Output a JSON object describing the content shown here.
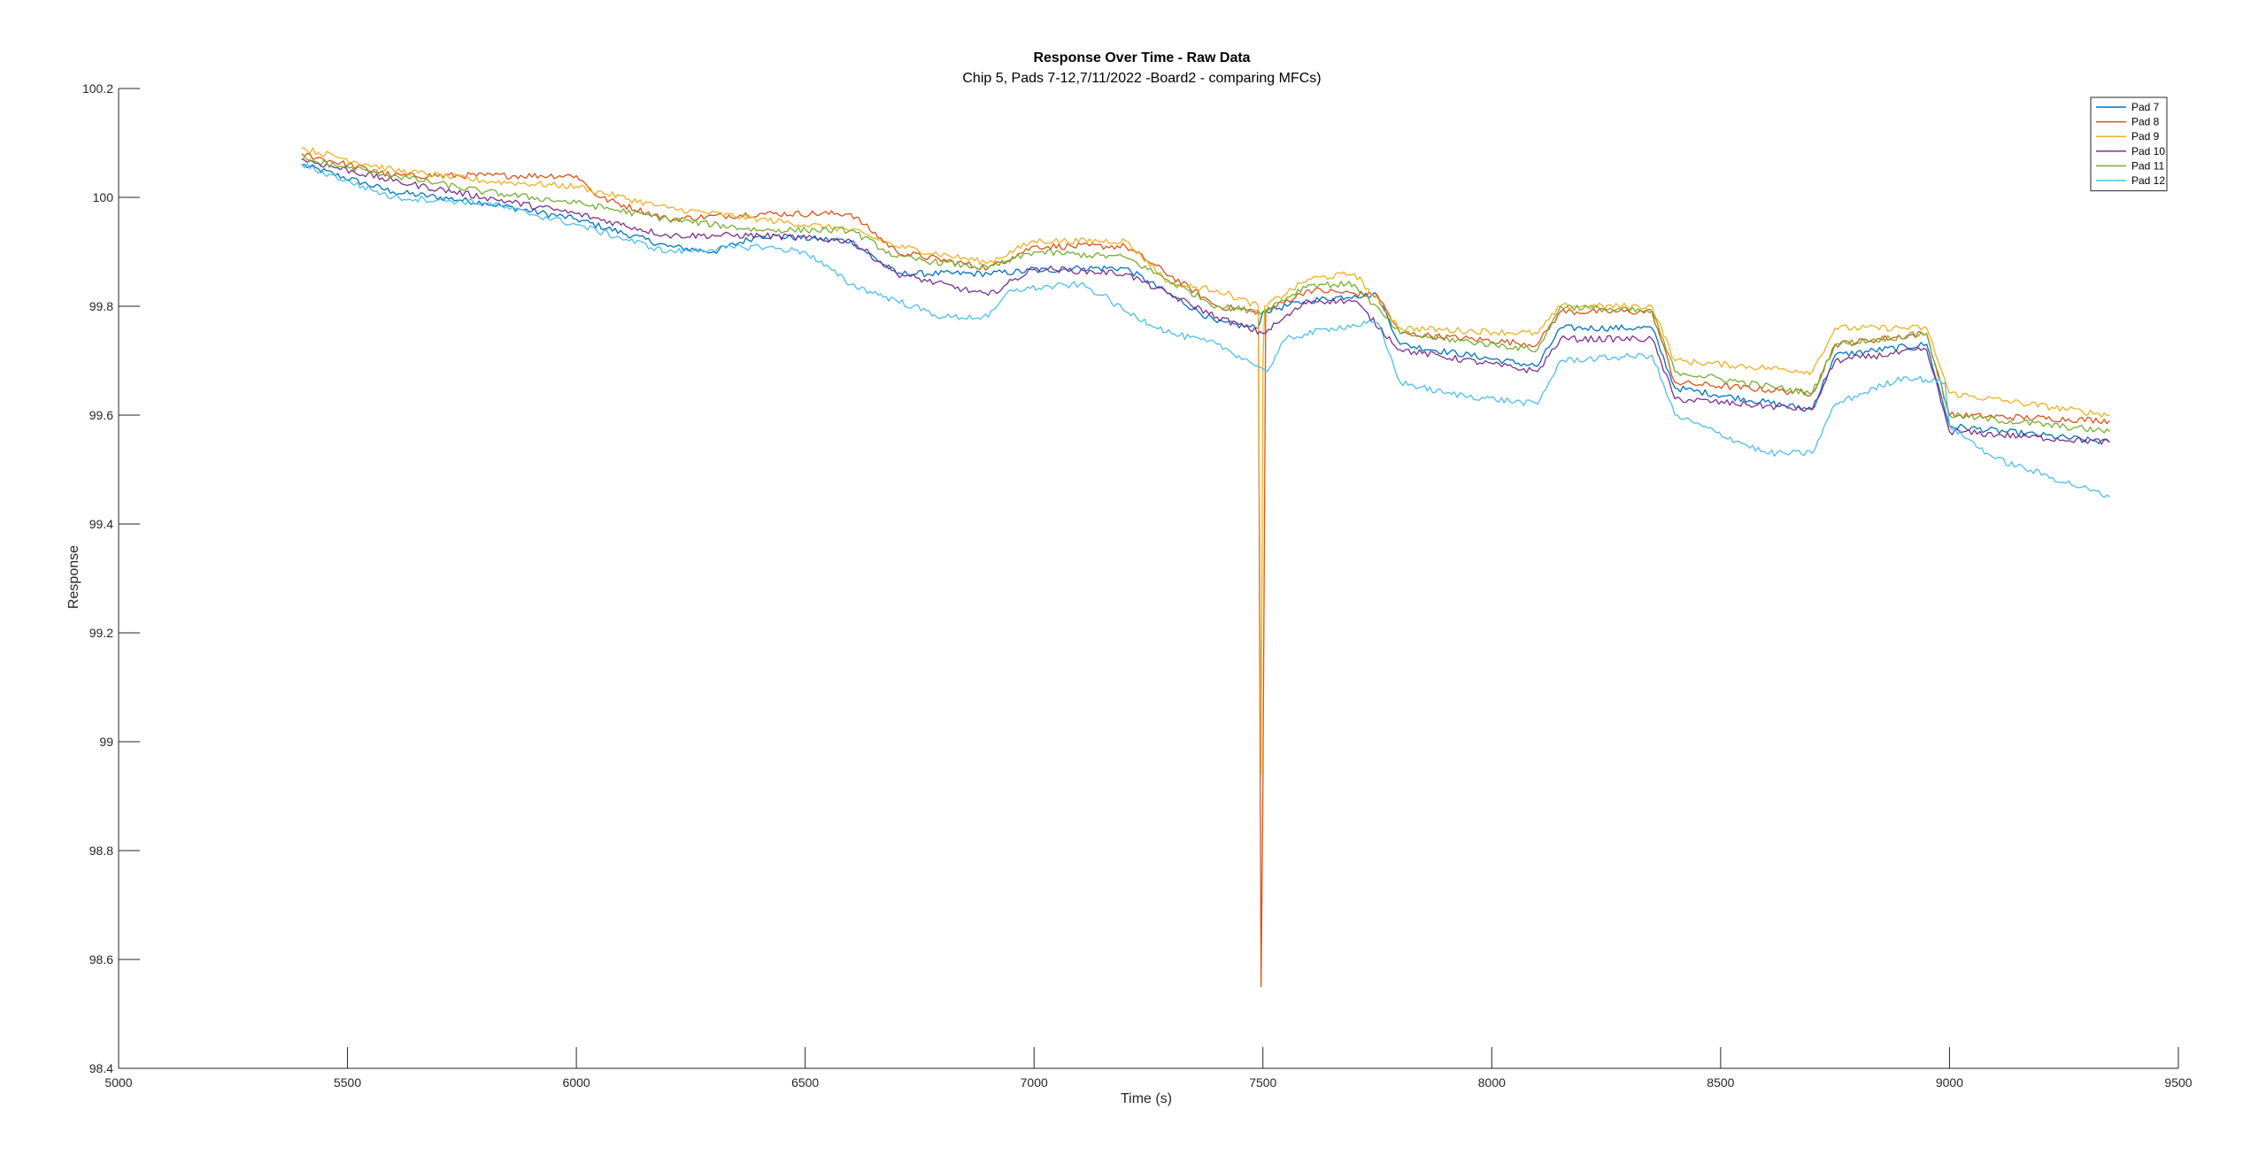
{
  "chart_data": {
    "type": "line",
    "title": "Response Over Time - Raw Data",
    "subtitle": "Chip 5, Pads 7-12,7/11/2022 -Board2 - comparing MFCs)",
    "xlabel": "Time (s)",
    "ylabel": "Response",
    "xlim": [
      5000,
      9500
    ],
    "ylim": [
      98.4,
      100.2
    ],
    "xticks": [
      5000,
      5500,
      6000,
      6500,
      7000,
      7500,
      8000,
      8500,
      9000,
      9500
    ],
    "xtick_labels": [
      "5000",
      "5500",
      "6000",
      "6500",
      "7000",
      "7500",
      "8000",
      "8500",
      "9000",
      "9500"
    ],
    "yticks": [
      98.4,
      98.6,
      98.8,
      99,
      99.2,
      99.4,
      99.6,
      99.8,
      100,
      100.2
    ],
    "ytick_labels": [
      "98.4",
      "98.6",
      "98.8",
      "99",
      "99.2",
      "99.4",
      "99.6",
      "99.8",
      "100",
      "100.2"
    ],
    "grid": false,
    "legend_position": "top-right",
    "series": [
      {
        "name": "Pad 7",
        "color": "#0072BD",
        "x": [
          5400,
          5600,
          5800,
          6000,
          6200,
          6300,
          6400,
          6600,
          6700,
          6900,
          7100,
          7200,
          7400,
          7490,
          7500,
          7600,
          7700,
          7750,
          7800,
          8100,
          8150,
          8350,
          8400,
          8700,
          8750,
          8950,
          9000,
          9350
        ],
        "y": [
          100.06,
          100.01,
          99.99,
          99.96,
          99.91,
          99.9,
          99.93,
          99.92,
          99.86,
          99.86,
          99.87,
          99.87,
          99.77,
          99.76,
          99.79,
          99.81,
          99.82,
          99.82,
          99.73,
          99.69,
          99.76,
          99.76,
          99.65,
          99.61,
          99.71,
          99.73,
          99.58,
          99.55
        ]
      },
      {
        "name": "Pad 8",
        "color": "#D95319",
        "x": [
          5400,
          5600,
          5800,
          6000,
          6050,
          6200,
          6400,
          6600,
          6700,
          6900,
          7000,
          7200,
          7400,
          7490,
          7496,
          7500,
          7506,
          7600,
          7750,
          7800,
          8100,
          8150,
          8350,
          8400,
          8700,
          8750,
          8950,
          9000,
          9350
        ],
        "y": [
          100.08,
          100.04,
          100.04,
          100.04,
          100.0,
          99.96,
          99.97,
          99.97,
          99.9,
          99.87,
          99.91,
          99.91,
          99.8,
          99.79,
          98.55,
          98.92,
          99.79,
          99.83,
          99.82,
          99.75,
          99.73,
          99.79,
          99.79,
          99.66,
          99.64,
          99.73,
          99.75,
          99.6,
          99.59
        ]
      },
      {
        "name": "Pad 9",
        "color": "#EDB120",
        "x": [
          5400,
          5600,
          5800,
          6000,
          6200,
          6400,
          6600,
          6700,
          6900,
          7000,
          7200,
          7300,
          7400,
          7490,
          7496,
          7500,
          7504,
          7600,
          7700,
          7800,
          8100,
          8150,
          8350,
          8400,
          8700,
          8750,
          8950,
          9000,
          9350
        ],
        "y": [
          100.09,
          100.05,
          100.03,
          100.02,
          99.98,
          99.96,
          99.94,
          99.91,
          99.88,
          99.92,
          99.92,
          99.84,
          99.83,
          99.8,
          98.94,
          99.7,
          99.8,
          99.85,
          99.86,
          99.76,
          99.75,
          99.8,
          99.8,
          99.7,
          99.68,
          99.76,
          99.76,
          99.64,
          99.6
        ]
      },
      {
        "name": "Pad 10",
        "color": "#7E2F8E",
        "x": [
          5400,
          5600,
          5800,
          6000,
          6200,
          6400,
          6600,
          6700,
          6900,
          7000,
          7200,
          7400,
          7500,
          7600,
          7700,
          7800,
          8100,
          8150,
          8350,
          8400,
          8700,
          8750,
          8950,
          9000,
          9350
        ],
        "y": [
          100.07,
          100.03,
          100.0,
          99.97,
          99.93,
          99.93,
          99.92,
          99.86,
          99.82,
          99.87,
          99.86,
          99.78,
          99.75,
          99.81,
          99.81,
          99.72,
          99.68,
          99.74,
          99.74,
          99.63,
          99.61,
          99.7,
          99.72,
          99.57,
          99.55
        ]
      },
      {
        "name": "Pad 11",
        "color": "#77AC30",
        "x": [
          5400,
          5600,
          5800,
          6000,
          6200,
          6400,
          6600,
          6700,
          6900,
          7000,
          7200,
          7400,
          7500,
          7600,
          7700,
          7800,
          8100,
          8150,
          8350,
          8400,
          8700,
          8750,
          8950,
          9000,
          9350
        ],
        "y": [
          100.07,
          100.04,
          100.01,
          99.99,
          99.96,
          99.94,
          99.94,
          99.89,
          99.87,
          99.9,
          99.89,
          99.8,
          99.79,
          99.84,
          99.84,
          99.75,
          99.72,
          99.8,
          99.79,
          99.68,
          99.64,
          99.73,
          99.75,
          99.6,
          99.57
        ]
      },
      {
        "name": "Pad 12",
        "color": "#4DBEEE",
        "x": [
          5400,
          5600,
          5800,
          6000,
          6200,
          6400,
          6500,
          6600,
          6700,
          6800,
          6900,
          6950,
          7100,
          7150,
          7200,
          7300,
          7400,
          7490,
          7510,
          7550,
          7650,
          7750,
          7800,
          7900,
          8100,
          8150,
          8350,
          8400,
          8600,
          8700,
          8750,
          8900,
          8990,
          9000,
          9100,
          9350
        ],
        "y": [
          100.06,
          100.0,
          99.99,
          99.95,
          99.9,
          99.91,
          99.9,
          99.84,
          99.81,
          99.78,
          99.78,
          99.83,
          99.84,
          99.82,
          99.79,
          99.75,
          99.73,
          99.69,
          99.68,
          99.74,
          99.76,
          99.77,
          99.66,
          99.64,
          99.62,
          99.7,
          99.71,
          99.6,
          99.53,
          99.53,
          99.62,
          99.67,
          99.66,
          99.58,
          99.52,
          99.45
        ]
      }
    ]
  }
}
